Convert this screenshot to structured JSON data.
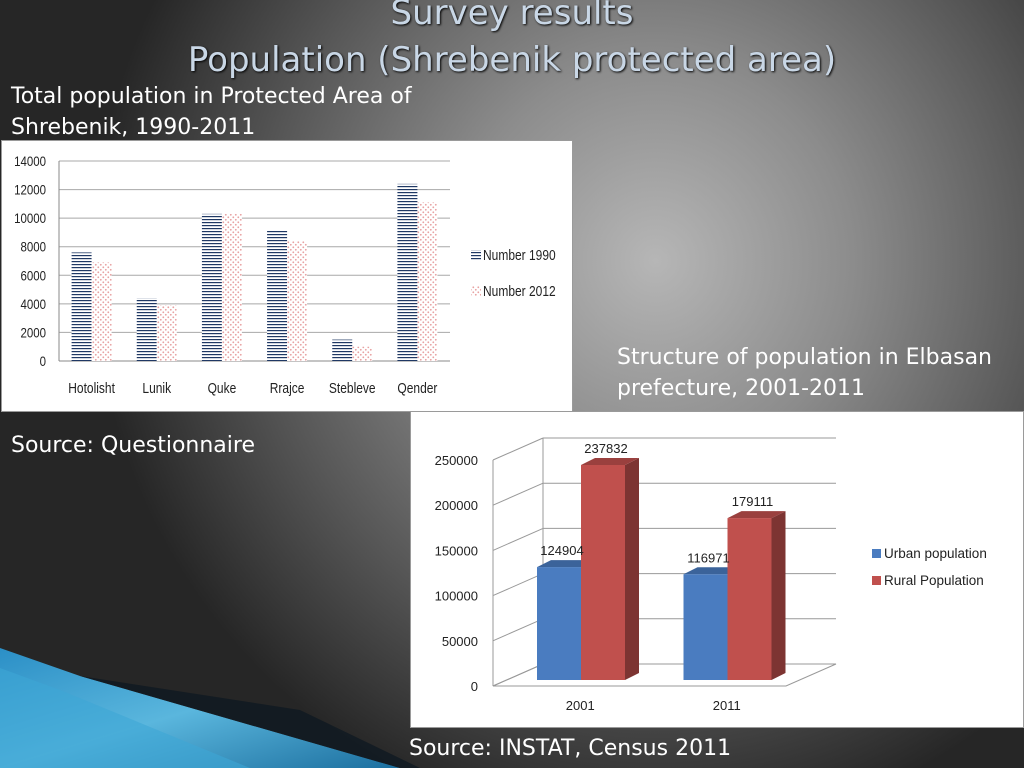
{
  "slide": {
    "title_line1": "Survey results",
    "title_line2": "Population (Shrebenik protected area)",
    "chart1_title": "Total population in Protected Area of Shrebenik, 1990-2011",
    "chart1_source": "Source: Questionnaire",
    "chart2_title": "Structure of population in Elbasan prefecture, 2001-2011",
    "chart2_source": "Source: INSTAT, Census 2011"
  },
  "colors": {
    "series1990": "#1f3864",
    "series2012": "#e8a0a0",
    "urban": "#4a7cc0",
    "rural": "#c0504d",
    "title": "#c9d7e6"
  },
  "chart_data": [
    {
      "type": "bar",
      "categories": [
        "Hotolisht",
        "Lunik",
        "Quke",
        "Rrajce",
        "Stebleve",
        "Qender"
      ],
      "series": [
        {
          "name": "Number 1990",
          "values": [
            7600,
            4400,
            10300,
            9200,
            1500,
            12400
          ]
        },
        {
          "name": "Number 2012",
          "values": [
            6900,
            3900,
            10300,
            8400,
            1000,
            11100
          ]
        }
      ],
      "ylim": [
        0,
        14000
      ],
      "yticks": [
        "0",
        "2000",
        "4000",
        "6000",
        "8000",
        "10000",
        "12000",
        "14000"
      ],
      "grid": true,
      "legend": "right"
    },
    {
      "type": "bar",
      "categories": [
        "2001",
        "2011"
      ],
      "series": [
        {
          "name": "Urban population",
          "values": [
            124904,
            116971
          ]
        },
        {
          "name": "Rural Population",
          "values": [
            237832,
            179111
          ]
        }
      ],
      "data_labels": [
        "124904",
        "237832",
        "116971",
        "179111"
      ],
      "ylim": [
        0,
        250000
      ],
      "yticks": [
        "0",
        "50000",
        "100000",
        "150000",
        "200000",
        "250000"
      ],
      "grid": true,
      "legend": "right"
    }
  ]
}
